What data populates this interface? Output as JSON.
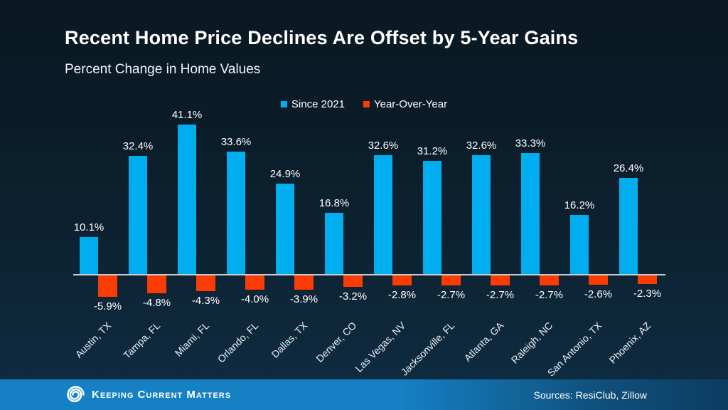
{
  "title": "Recent Home Price Declines Are Offset by 5-Year Gains",
  "subtitle": "Percent Change in Home Values",
  "legend": [
    {
      "label": "Since 2021",
      "color": "#00aeef"
    },
    {
      "label": "Year-Over-Year",
      "color": "#fb3c02"
    }
  ],
  "chart_data": {
    "type": "bar",
    "title": "Recent Home Price Declines Are Offset by 5-Year Gains",
    "subtitle": "Percent Change in Home Values",
    "unit": "%",
    "categories": [
      "Austin, TX",
      "Tampa, FL",
      "Miami, FL",
      "Orlando, FL",
      "Dallas, TX",
      "Denver, CO",
      "Las Vegas, NV",
      "Jacksonville, FL",
      "Atlanta, GA",
      "Raleigh, NC",
      "San Antonio, TX",
      "Phoenix, AZ"
    ],
    "series": [
      {
        "name": "Since 2021",
        "color": "#00aeef",
        "values": [
          10.1,
          32.4,
          41.1,
          33.6,
          24.9,
          16.8,
          32.6,
          31.2,
          32.6,
          33.3,
          16.2,
          26.4
        ]
      },
      {
        "name": "Year-Over-Year",
        "color": "#fb3c02",
        "values": [
          -5.9,
          -4.8,
          -4.3,
          -4.0,
          -3.9,
          -3.2,
          -2.8,
          -2.7,
          -2.7,
          -2.7,
          -2.6,
          -2.3
        ]
      }
    ],
    "ylim": [
      -8,
      45
    ],
    "grid": false,
    "legend_position": "top-center",
    "axis_line_color": "#c7ccd2",
    "background": "dark-navy-gradient"
  },
  "footer": {
    "brand": "Keeping Current Matters",
    "sources": "Sources: ResiClub, Zillow"
  }
}
